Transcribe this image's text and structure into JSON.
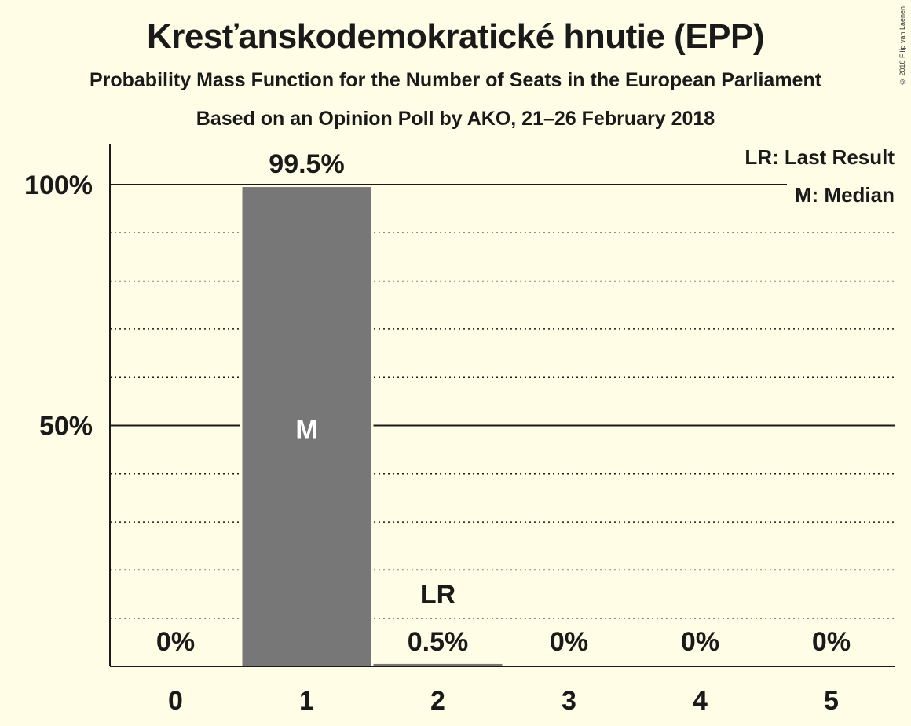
{
  "chart_data": {
    "type": "bar",
    "title": "Kresťanskodemokratické hnutie (EPP)",
    "subtitle": "Probability Mass Function for the Number of Seats in the European Parliament",
    "subtitle2": "Based on an Opinion Poll by AKO, 21–26 February 2018",
    "categories": [
      "0",
      "1",
      "2",
      "3",
      "4",
      "5"
    ],
    "values": [
      0,
      99.5,
      0.5,
      0,
      0,
      0
    ],
    "value_labels": [
      "0%",
      "99.5%",
      "0.5%",
      "0%",
      "0%",
      "0%"
    ],
    "ylim": [
      0,
      100
    ],
    "yticks": [
      {
        "value": 50,
        "label": "50%"
      },
      {
        "value": 100,
        "label": "100%"
      }
    ],
    "minor_gridlines": [
      10,
      20,
      30,
      40,
      60,
      70,
      80,
      90
    ],
    "median_category": "1",
    "median_marker": "M",
    "last_result_category": "2",
    "last_result_marker": "LR",
    "legend": [
      "LR: Last Result",
      "M: Median"
    ],
    "legend_position": "top-right",
    "colors": {
      "background": "#fffde6",
      "bar": "#777777",
      "text": "#1a1a1a",
      "median_text": "#ffffff"
    }
  },
  "copyright": "© 2018 Filip van Laenen"
}
